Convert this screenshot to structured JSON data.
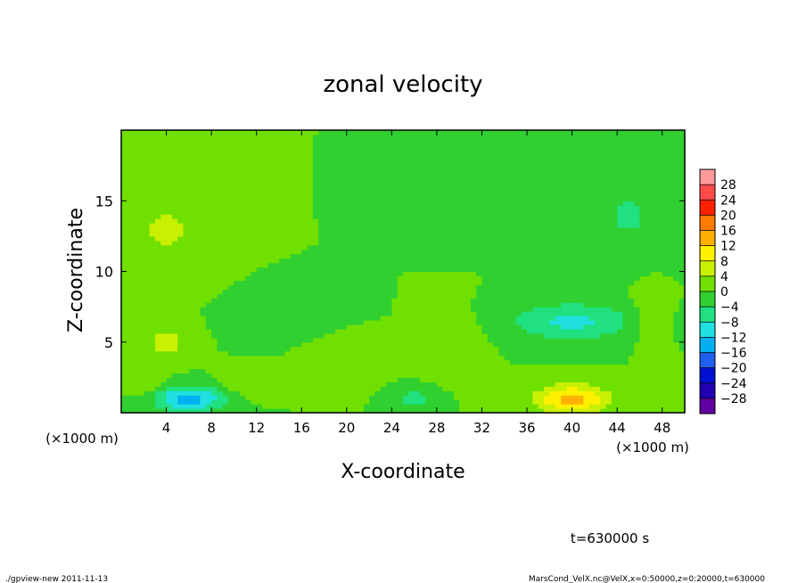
{
  "chart_data": {
    "type": "heatmap",
    "title": "zonal velocity",
    "xlabel": "X-coordinate",
    "ylabel": "Z-coordinate",
    "x_unit_label": "(×1000 m)",
    "x_unit_label_right": "(×1000 m)",
    "xlim": [
      0,
      50
    ],
    "ylim": [
      0,
      20
    ],
    "x_ticks": [
      4,
      8,
      12,
      16,
      20,
      24,
      28,
      32,
      36,
      40,
      44,
      48
    ],
    "x_tick_labels": [
      "4",
      "8",
      "12",
      "16",
      "20",
      "24",
      "28",
      "32",
      "36",
      "40",
      "44",
      "48"
    ],
    "y_ticks": [
      5,
      10,
      15
    ],
    "y_tick_labels": [
      "5",
      "10",
      "15"
    ],
    "colorbar": {
      "levels": [
        28,
        24,
        20,
        16,
        12,
        8,
        4,
        0,
        -4,
        -8,
        -12,
        -16,
        -20,
        -24,
        -28
      ],
      "labels": [
        "28",
        "24",
        "20",
        "16",
        "12",
        "8",
        "4",
        "0",
        "−4",
        "−8",
        "−12",
        "−16",
        "−20",
        "−24",
        "−28"
      ],
      "colors": [
        "#ff9a9a",
        "#ff4a4a",
        "#ff2000",
        "#ff7a00",
        "#ffb000",
        "#fff000",
        "#c8f000",
        "#70e000",
        "#30d030",
        "#20e080",
        "#20e0e0",
        "#00b0f0",
        "#2060f0",
        "#0010d0",
        "#2000b0",
        "#6000a0"
      ]
    },
    "background_value": 0,
    "features": [
      {
        "x": 6,
        "z": 1,
        "value": -14,
        "sx": 3.2,
        "sz": 0.9
      },
      {
        "x": 40,
        "z": 1,
        "value": 14,
        "sx": 3.2,
        "sz": 1.0
      },
      {
        "x": 40,
        "z": 6.5,
        "value": -9,
        "sx": 5.5,
        "sz": 1.3
      },
      {
        "x": 45,
        "z": 14,
        "value": -4.5,
        "sx": 3.5,
        "sz": 3.0
      },
      {
        "x": 4,
        "z": 5,
        "value": 6,
        "sx": 2.0,
        "sz": 1.2
      },
      {
        "x": 4,
        "z": 13,
        "value": 4.5,
        "sx": 4.0,
        "sz": 3.0
      },
      {
        "x": 26,
        "z": 1,
        "value": -6,
        "sx": 1.8,
        "sz": 0.8
      },
      {
        "x": 20,
        "z": 4,
        "value": 3.5,
        "sx": 3.0,
        "sz": 1.5
      },
      {
        "x": 29,
        "z": 5,
        "value": 4,
        "sx": 2.5,
        "sz": 2.0
      },
      {
        "x": 47,
        "z": 7,
        "value": 4,
        "sx": 1.5,
        "sz": 2.0
      },
      {
        "x": 15,
        "z": 7,
        "value": -3.5,
        "sx": 4.0,
        "sz": 1.5
      },
      {
        "x": 30,
        "z": 15,
        "value": -3,
        "sx": 4.0,
        "sz": 2.0
      },
      {
        "x": 2,
        "z": 2,
        "value": 4,
        "sx": 1.5,
        "sz": 1.0
      },
      {
        "x": 11,
        "z": 2,
        "value": 3,
        "sx": 2.0,
        "sz": 1.0
      }
    ]
  },
  "time_label": "t=630000 s",
  "footer_left": "./gpview-new  2011-11-13",
  "footer_right": "MarsCond_VelX.nc@VelX,x=0:50000,z=0:20000,t=630000"
}
